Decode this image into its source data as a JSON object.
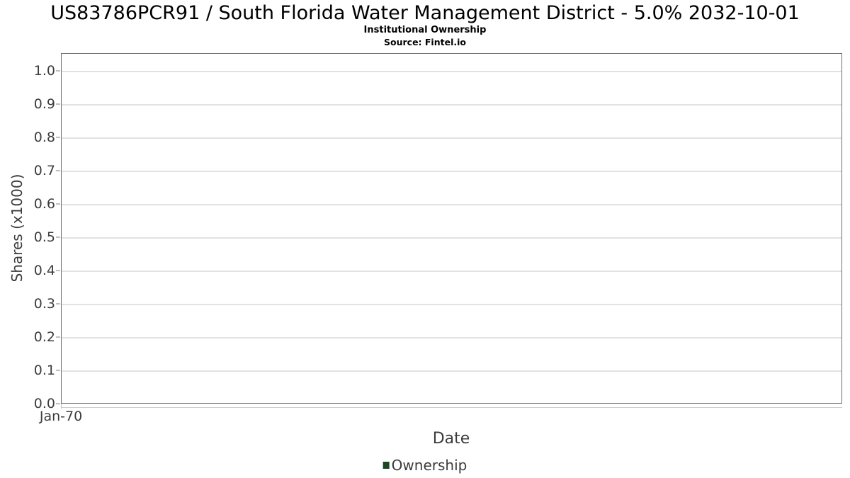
{
  "header": {
    "title": "US83786PCR91 / South Florida Water Management District - 5.0% 2032-10-01",
    "subtitle": "Institutional Ownership",
    "source": "Source: Fintel.io"
  },
  "chart_data": {
    "type": "line",
    "title": "US83786PCR91 / South Florida Water Management District - 5.0% 2032-10-01",
    "subtitle": "Institutional Ownership",
    "source": "Source: Fintel.io",
    "xlabel": "Date",
    "ylabel": "Shares (x1000)",
    "x_tick_labels": [
      "Jan-70"
    ],
    "y_ticks": [
      0.0,
      0.1,
      0.2,
      0.3,
      0.4,
      0.5,
      0.6,
      0.7,
      0.8,
      0.9,
      1.0
    ],
    "y_tick_labels": [
      "0.0",
      "0.1",
      "0.2",
      "0.3",
      "0.4",
      "0.5",
      "0.6",
      "0.7",
      "0.8",
      "0.9",
      "1.0"
    ],
    "ylim": [
      0.0,
      1.05
    ],
    "grid": true,
    "legend": {
      "position": "bottom",
      "entries": [
        {
          "label": "Ownership",
          "color": "#1c4726"
        }
      ]
    },
    "series": [
      {
        "name": "Ownership",
        "x": [],
        "values": []
      }
    ]
  },
  "colors": {
    "background": "#ffffff",
    "plot_border": "#6e6e6e",
    "gridline": "#e2e2e2",
    "tick_mark": "#c0c0c0",
    "axis_text": "#3c3c3c",
    "title_text": "#000000",
    "series_ownership": "#1c4726"
  }
}
